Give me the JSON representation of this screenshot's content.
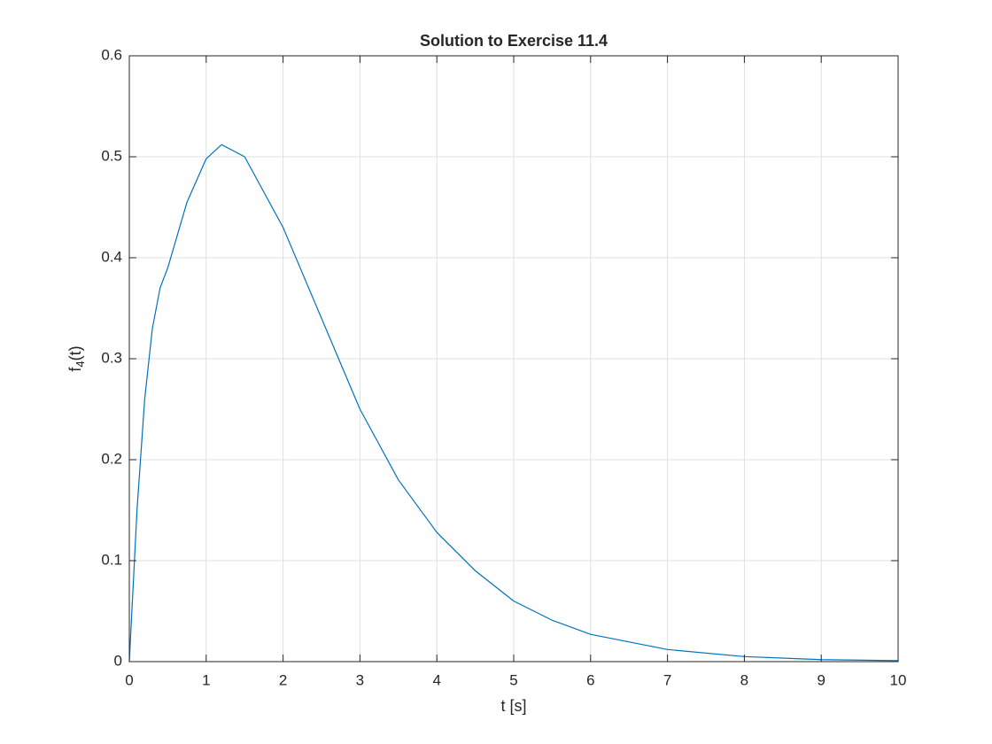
{
  "chart_data": {
    "type": "line",
    "title": "Solution to Exercise 11.4",
    "xlabel": "t [s]",
    "ylabel": {
      "base": "f",
      "subscript": "4",
      "rest": "(t)"
    },
    "x": [
      0,
      0.1,
      0.2,
      0.3,
      0.4,
      0.5,
      0.75,
      1,
      1.2,
      1.5,
      2,
      2.5,
      3,
      3.5,
      4,
      4.5,
      5,
      5.5,
      6,
      7,
      8,
      9,
      10
    ],
    "series": [
      {
        "color": "#0072bd",
        "values": [
          0,
          0.15,
          0.26,
          0.33,
          0.37,
          0.39,
          0.455,
          0.498,
          0.512,
          0.5,
          0.43,
          0.34,
          0.25,
          0.18,
          0.128,
          0.09,
          0.06,
          0.041,
          0.027,
          0.012,
          0.005,
          0.002,
          0.001
        ]
      }
    ],
    "xlim": [
      0,
      10
    ],
    "xticks": [
      0,
      1,
      2,
      3,
      4,
      5,
      6,
      7,
      8,
      9,
      10
    ],
    "ylim": [
      0,
      0.6
    ],
    "yticks": [
      0,
      0.1,
      0.2,
      0.3,
      0.4,
      0.5,
      0.6
    ],
    "grid": true
  }
}
